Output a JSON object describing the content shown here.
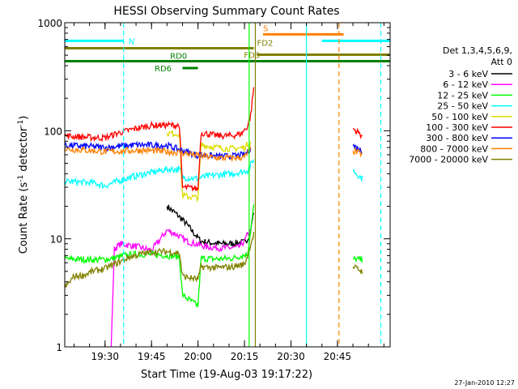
{
  "chart_data": {
    "type": "line",
    "title": "HESSI Observing Summary Count Rates",
    "xlabel": "Start Time (19-Aug-03 19:17:22)",
    "ylabel_main": "Count Rate (s",
    "ylabel_sup1": "-1",
    "ylabel_mid": " detector",
    "ylabel_sup2": "-1",
    "ylabel_end": ")",
    "ylog": true,
    "ylim": [
      1,
      1000
    ],
    "xlim_minutes": [
      1157,
      1262
    ],
    "xticks": [
      {
        "m": 1170,
        "label": "19:30"
      },
      {
        "m": 1185,
        "label": "19:45"
      },
      {
        "m": 1200,
        "label": "20:00"
      },
      {
        "m": 1215,
        "label": "20:15"
      },
      {
        "m": 1230,
        "label": "20:30"
      },
      {
        "m": 1245,
        "label": "20:45"
      }
    ],
    "yticks": [
      {
        "v": 1,
        "label": "1"
      },
      {
        "v": 10,
        "label": "10"
      },
      {
        "v": 100,
        "label": "100"
      },
      {
        "v": 1000,
        "label": "1000"
      }
    ],
    "timestamp": "27-Jan-2010 12:27",
    "legend_title1": "Det 1,3,4,5,6,9,",
    "legend_title2": "Att 0",
    "series": [
      {
        "name": "3 - 6 keV",
        "color": "#000000",
        "pts": [
          [
            1190,
            20
          ],
          [
            1193,
            17
          ],
          [
            1196,
            14
          ],
          [
            1199,
            11
          ],
          [
            1201,
            9.5
          ],
          [
            1204,
            9.2
          ],
          [
            1207,
            9
          ],
          [
            1210,
            9
          ],
          [
            1213,
            9.2
          ],
          [
            1215,
            9.3
          ],
          [
            1216,
            10
          ],
          [
            1217,
            12
          ],
          [
            1218,
            18
          ]
        ]
      },
      {
        "name": "6 - 12 keV",
        "color": "#ff00ff",
        "pts": [
          [
            1157,
            1
          ],
          [
            1172,
            1
          ],
          [
            1173,
            8
          ],
          [
            1175,
            9
          ],
          [
            1180,
            8.5
          ],
          [
            1185,
            7.8
          ],
          [
            1190,
            12
          ],
          [
            1193,
            11
          ],
          [
            1196,
            9.6
          ],
          [
            1199,
            9
          ],
          [
            1203,
            8.4
          ],
          [
            1208,
            8.2
          ],
          [
            1213,
            8.3
          ],
          [
            1215,
            9.5
          ],
          [
            1216,
            11
          ],
          [
            1217,
            12
          ]
        ]
      },
      {
        "name": "12 - 25 keV",
        "color": "#00ff00",
        "pts": [
          [
            1157,
            6.5
          ],
          [
            1167,
            6.4
          ],
          [
            1172,
            6.5
          ],
          [
            1176,
            7
          ],
          [
            1180,
            7.2
          ],
          [
            1185,
            7.2
          ],
          [
            1190,
            7
          ],
          [
            1194,
            6.8
          ],
          [
            1195,
            3
          ],
          [
            1200,
            2.4
          ],
          [
            1201,
            6.6
          ],
          [
            1206,
            6.5
          ],
          [
            1211,
            6.6
          ],
          [
            1216,
            7.2
          ],
          [
            1218,
            20
          ],
          [
            1250,
            6.5
          ],
          [
            1253,
            6.4
          ]
        ]
      },
      {
        "name": "25 - 50 keV",
        "color": "#00ffff",
        "pts": [
          [
            1157,
            34
          ],
          [
            1166,
            33
          ],
          [
            1170,
            31
          ],
          [
            1174,
            34
          ],
          [
            1178,
            37
          ],
          [
            1183,
            40
          ],
          [
            1190,
            44
          ],
          [
            1194,
            44
          ],
          [
            1195,
            37
          ],
          [
            1200,
            36
          ],
          [
            1201,
            37
          ],
          [
            1206,
            39
          ],
          [
            1211,
            40
          ],
          [
            1215,
            42
          ],
          [
            1216,
            43
          ],
          [
            1217,
            48
          ],
          [
            1218,
            55
          ],
          [
            1250,
            43
          ],
          [
            1253,
            36
          ]
        ]
      },
      {
        "name": "50 - 100 keV",
        "color": "#dddd00",
        "pts": [
          [
            1190,
            95
          ],
          [
            1194,
            94
          ],
          [
            1195,
            25
          ],
          [
            1200,
            24
          ],
          [
            1201,
            74
          ],
          [
            1206,
            70
          ],
          [
            1211,
            68
          ],
          [
            1215,
            70
          ],
          [
            1216,
            75
          ],
          [
            1217,
            80
          ]
        ]
      },
      {
        "name": "100 - 300 keV",
        "color": "#ff0000",
        "pts": [
          [
            1157,
            90
          ],
          [
            1164,
            87
          ],
          [
            1170,
            86
          ],
          [
            1174,
            95
          ],
          [
            1180,
            105
          ],
          [
            1185,
            112
          ],
          [
            1190,
            113
          ],
          [
            1194,
            112
          ],
          [
            1195,
            30
          ],
          [
            1200,
            29
          ],
          [
            1201,
            96
          ],
          [
            1206,
            90
          ],
          [
            1211,
            90
          ],
          [
            1214,
            94
          ],
          [
            1216,
            110
          ],
          [
            1217,
            140
          ],
          [
            1218,
            250
          ],
          [
            1250,
            105
          ],
          [
            1253,
            90
          ]
        ]
      },
      {
        "name": "300 - 800 keV",
        "color": "#0000ff",
        "pts": [
          [
            1157,
            73
          ],
          [
            1164,
            72
          ],
          [
            1170,
            70
          ],
          [
            1175,
            72
          ],
          [
            1180,
            74
          ],
          [
            1190,
            73
          ],
          [
            1194,
            67
          ],
          [
            1197,
            63
          ],
          [
            1200,
            59
          ],
          [
            1201,
            60
          ],
          [
            1206,
            58
          ],
          [
            1211,
            58
          ],
          [
            1215,
            60
          ],
          [
            1216,
            63
          ],
          [
            1217,
            70
          ],
          [
            1250,
            73
          ],
          [
            1253,
            65
          ]
        ]
      },
      {
        "name": "800 - 7000 keV",
        "color": "#ff8000",
        "pts": [
          [
            1157,
            68
          ],
          [
            1164,
            66
          ],
          [
            1170,
            64
          ],
          [
            1176,
            65
          ],
          [
            1182,
            66
          ],
          [
            1190,
            64
          ],
          [
            1194,
            63
          ],
          [
            1197,
            61
          ],
          [
            1200,
            59
          ],
          [
            1206,
            56
          ],
          [
            1212,
            56
          ],
          [
            1215,
            57
          ],
          [
            1216,
            62
          ],
          [
            1217,
            68
          ],
          [
            1250,
            65
          ],
          [
            1253,
            61
          ]
        ]
      },
      {
        "name": "7000 - 20000 keV",
        "color": "#808000",
        "pts": [
          [
            1157,
            3.5
          ],
          [
            1160,
            4.5
          ],
          [
            1163,
            4.6
          ],
          [
            1166,
            5
          ],
          [
            1170,
            5.3
          ],
          [
            1174,
            6
          ],
          [
            1178,
            6.8
          ],
          [
            1182,
            7.3
          ],
          [
            1186,
            7.6
          ],
          [
            1190,
            7.6
          ],
          [
            1194,
            7.4
          ],
          [
            1195,
            4.5
          ],
          [
            1200,
            4.2
          ],
          [
            1201,
            5.5
          ],
          [
            1206,
            5.4
          ],
          [
            1211,
            5.5
          ],
          [
            1215,
            5.8
          ],
          [
            1216,
            7
          ],
          [
            1217,
            9
          ],
          [
            1218,
            11
          ],
          [
            1250,
            5.5
          ],
          [
            1253,
            5
          ]
        ]
      }
    ],
    "annotations": [
      {
        "label": "N",
        "color": "#00ffff",
        "x1": 1157,
        "x2": 1176,
        "y": 680
      },
      {
        "label": "",
        "color": "#00ffff",
        "x1": 1240,
        "x2": 1262,
        "y": 680
      },
      {
        "label": "S",
        "color": "#ff8000",
        "x1": 1221,
        "x2": 1236,
        "y": 780
      },
      {
        "label": "",
        "color": "#ff8000",
        "x1": 1236,
        "x2": 1247,
        "y": 780
      },
      {
        "label": "FD2",
        "color": "#808000",
        "x1": 1157,
        "x2": 1218,
        "y": 580
      },
      {
        "label": "FD3",
        "color": "#808000",
        "x1": 1219,
        "x2": 1262,
        "y": 505
      },
      {
        "label": "RD0",
        "color": "#008000",
        "x1": 1157,
        "x2": 1262,
        "y": 440
      },
      {
        "label": "RD6",
        "color": "#008000",
        "x1": 1195,
        "x2": 1200,
        "y": 380
      }
    ],
    "vlines": [
      {
        "m": 1176,
        "color": "#00ffff",
        "dash": true
      },
      {
        "m": 1216.5,
        "color": "#00ff00",
        "dash": false
      },
      {
        "m": 1218.5,
        "color": "#808000",
        "dash": false
      },
      {
        "m": 1235,
        "color": "#00ffff",
        "dash": false
      },
      {
        "m": 1245.5,
        "color": "#ff8000",
        "dash": true
      },
      {
        "m": 1259,
        "color": "#00ffff",
        "dash": true
      }
    ]
  }
}
